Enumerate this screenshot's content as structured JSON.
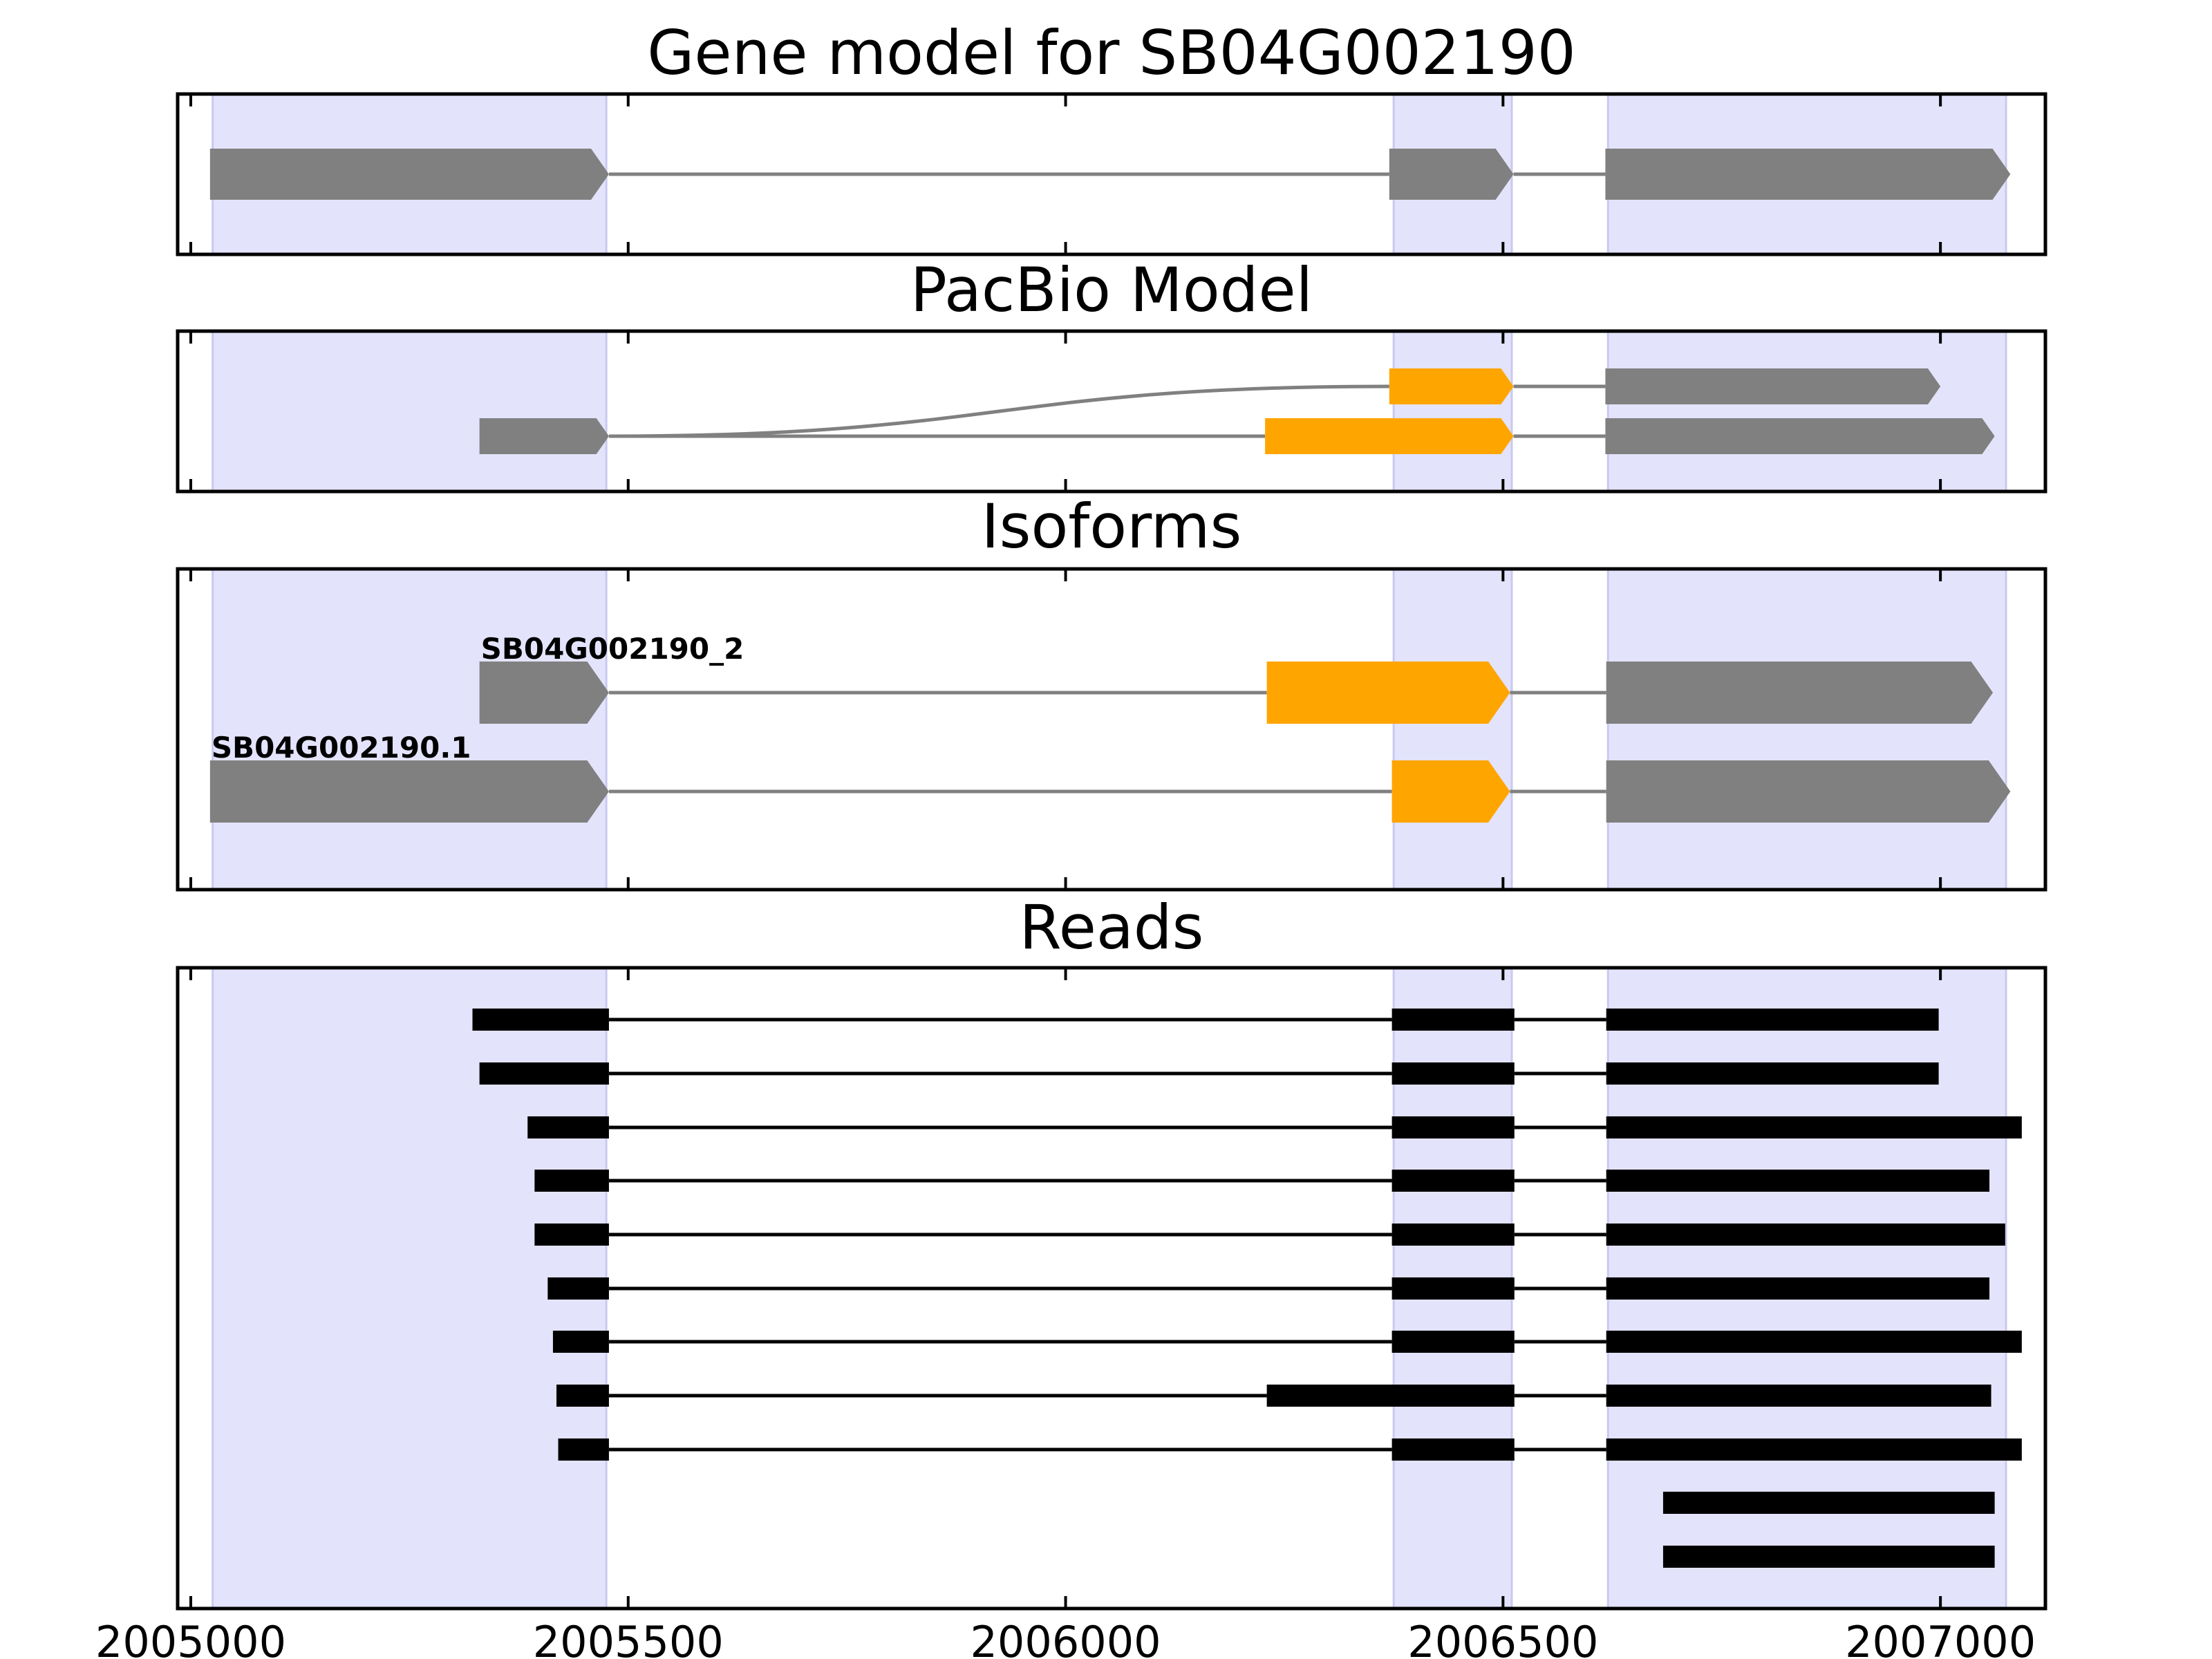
{
  "chart_data": {
    "type": "gene-model-tracks",
    "xlim": [
      2004985,
      2007120
    ],
    "x_ticks": [
      2005000,
      2005500,
      2006000,
      2006500,
      2007000
    ],
    "x_tick_labels": [
      "2005000",
      "2005500",
      "2006000",
      "2006500",
      "2007000"
    ],
    "exon_regions": [
      [
        2005025,
        2005475
      ],
      [
        2006375,
        2006510
      ],
      [
        2006620,
        2007075
      ]
    ],
    "colors": {
      "exon": "#808080",
      "alt_exon": "#FFA500",
      "region_shade": "#E3E3FC",
      "intron": "#808080",
      "read": "#000000"
    },
    "panels": [
      {
        "title": "Gene model for SB04G002190",
        "kind": "gene",
        "tracks": [
          {
            "label": "",
            "exons": [
              [
                2005022,
                2005478,
                "exon"
              ],
              [
                2006370,
                2006512,
                "exon"
              ],
              [
                2006617,
                2007080,
                "exon"
              ]
            ]
          }
        ]
      },
      {
        "title": "PacBio Model",
        "kind": "pacbio",
        "tracks": [
          {
            "label": "",
            "exons": [
              [
                2006370,
                2006512,
                "alt_exon"
              ],
              [
                2006617,
                2007000,
                "exon"
              ]
            ],
            "curve_from": 2005478
          },
          {
            "label": "",
            "exons": [
              [
                2005330,
                2005478,
                "exon"
              ],
              [
                2006228,
                2006512,
                "alt_exon"
              ],
              [
                2006617,
                2007062,
                "exon"
              ]
            ]
          }
        ]
      },
      {
        "title": "Isoforms",
        "kind": "isoform",
        "tracks": [
          {
            "label": "SB04G002190_2",
            "exons": [
              [
                2005330,
                2005478,
                "exon"
              ],
              [
                2006230,
                2006508,
                "alt_exon"
              ],
              [
                2006618,
                2007060,
                "exon"
              ]
            ]
          },
          {
            "label": "SB04G002190.1",
            "exons": [
              [
                2005022,
                2005478,
                "exon"
              ],
              [
                2006373,
                2006508,
                "alt_exon"
              ],
              [
                2006618,
                2007080,
                "exon"
              ]
            ]
          }
        ]
      },
      {
        "title": "Reads",
        "kind": "reads",
        "tracks": [
          {
            "exons": [
              [
                2005322,
                2005478
              ],
              [
                2006373,
                2006513
              ],
              [
                2006618,
                2006998
              ]
            ]
          },
          {
            "exons": [
              [
                2005330,
                2005478
              ],
              [
                2006373,
                2006513
              ],
              [
                2006618,
                2006998
              ]
            ]
          },
          {
            "exons": [
              [
                2005385,
                2005478
              ],
              [
                2006373,
                2006513
              ],
              [
                2006618,
                2007093
              ]
            ]
          },
          {
            "exons": [
              [
                2005393,
                2005478
              ],
              [
                2006373,
                2006513
              ],
              [
                2006618,
                2007056
              ]
            ]
          },
          {
            "exons": [
              [
                2005393,
                2005478
              ],
              [
                2006373,
                2006513
              ],
              [
                2006618,
                2007074
              ]
            ]
          },
          {
            "exons": [
              [
                2005408,
                2005478
              ],
              [
                2006373,
                2006513
              ],
              [
                2006618,
                2007056
              ]
            ]
          },
          {
            "exons": [
              [
                2005414,
                2005478
              ],
              [
                2006373,
                2006513
              ],
              [
                2006618,
                2007093
              ]
            ]
          },
          {
            "exons": [
              [
                2005418,
                2005478
              ],
              [
                2006230,
                2006513
              ],
              [
                2006618,
                2007058
              ]
            ]
          },
          {
            "exons": [
              [
                2005420,
                2005478
              ],
              [
                2006373,
                2006513
              ],
              [
                2006618,
                2007093
              ]
            ]
          },
          {
            "exons": [
              [
                2006683,
                2007062
              ]
            ]
          },
          {
            "exons": [
              [
                2006683,
                2007062
              ]
            ]
          }
        ]
      }
    ]
  }
}
